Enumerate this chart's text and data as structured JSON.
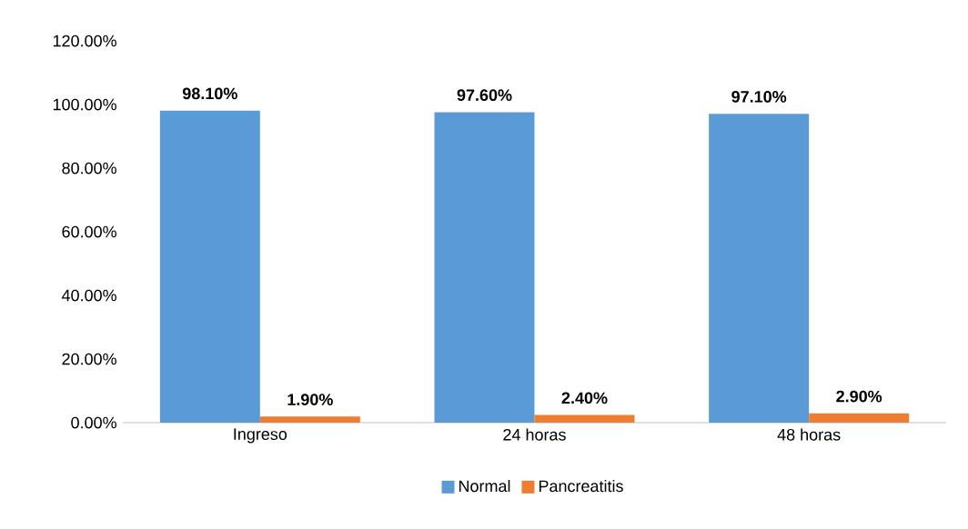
{
  "chart_data": {
    "type": "bar",
    "categories": [
      "Ingreso",
      "24 horas",
      "48 horas"
    ],
    "series": [
      {
        "name": "Normal",
        "color": "#5b9bd5",
        "values": [
          98.1,
          97.6,
          97.1
        ],
        "value_labels": [
          "98.10%",
          "97.60%",
          "97.10%"
        ]
      },
      {
        "name": "Pancreatitis",
        "color": "#ed7d31",
        "values": [
          1.9,
          2.4,
          2.9
        ],
        "value_labels": [
          "1.90%",
          "2.40%",
          "2.90%"
        ]
      }
    ],
    "ylim": [
      0,
      120
    ],
    "yticks": [
      {
        "value": 0,
        "label": "0.00%"
      },
      {
        "value": 20,
        "label": "20.00%"
      },
      {
        "value": 40,
        "label": "40.00%"
      },
      {
        "value": 60,
        "label": "60.00%"
      },
      {
        "value": 80,
        "label": "80.00%"
      },
      {
        "value": 100,
        "label": "100.00%"
      },
      {
        "value": 120,
        "label": "120.00%"
      }
    ],
    "grid": false,
    "legend": "bottom"
  }
}
